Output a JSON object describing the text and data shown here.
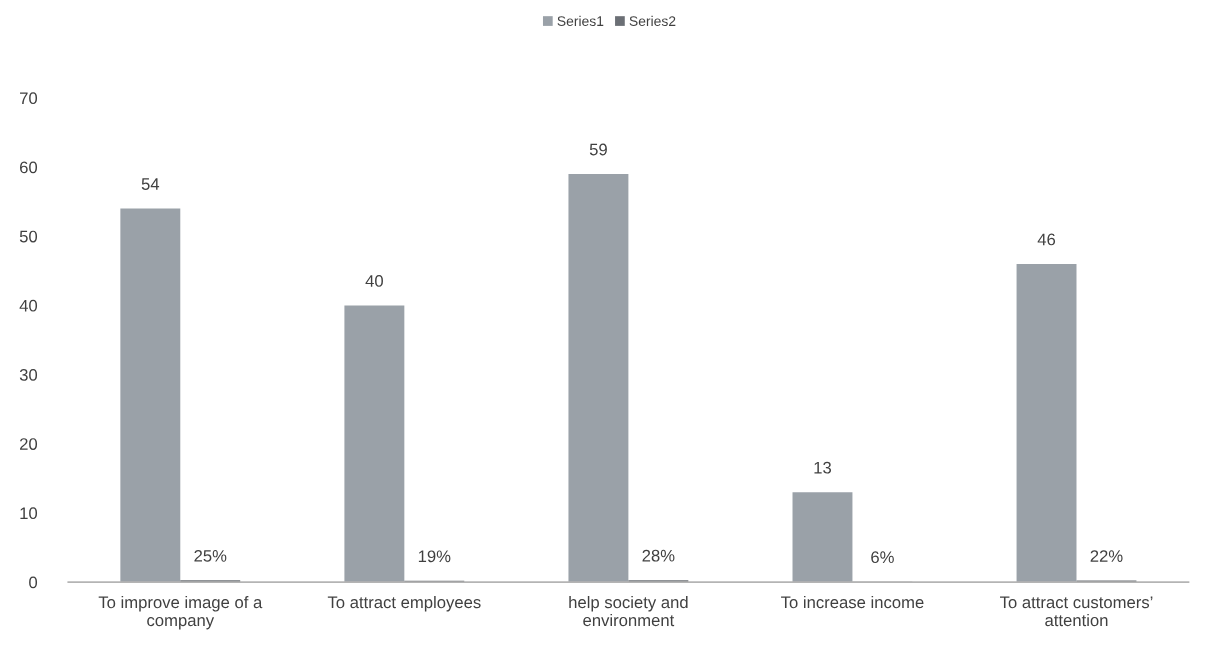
{
  "chart_data": {
    "type": "bar",
    "categories": [
      "To improve image of a company",
      "To attract employees",
      "help society and environment",
      "To increase income",
      "To attract customers’ attention"
    ],
    "series": [
      {
        "name": "Series1",
        "color": "#9aa1a8",
        "values": [
          54,
          40,
          59,
          13,
          46
        ],
        "value_labels": [
          "54",
          "40",
          "59",
          "13",
          "46"
        ]
      },
      {
        "name": "Series2",
        "color": "#6b6f75",
        "values": [
          0.25,
          0.19,
          0.28,
          0.06,
          0.22
        ],
        "value_labels": [
          "25%",
          "19%",
          "28%",
          "6%",
          "22%"
        ]
      }
    ],
    "ylim": [
      0,
      70
    ],
    "yticks": [
      0,
      10,
      20,
      30,
      40,
      50,
      60,
      70
    ],
    "legend": "top"
  }
}
